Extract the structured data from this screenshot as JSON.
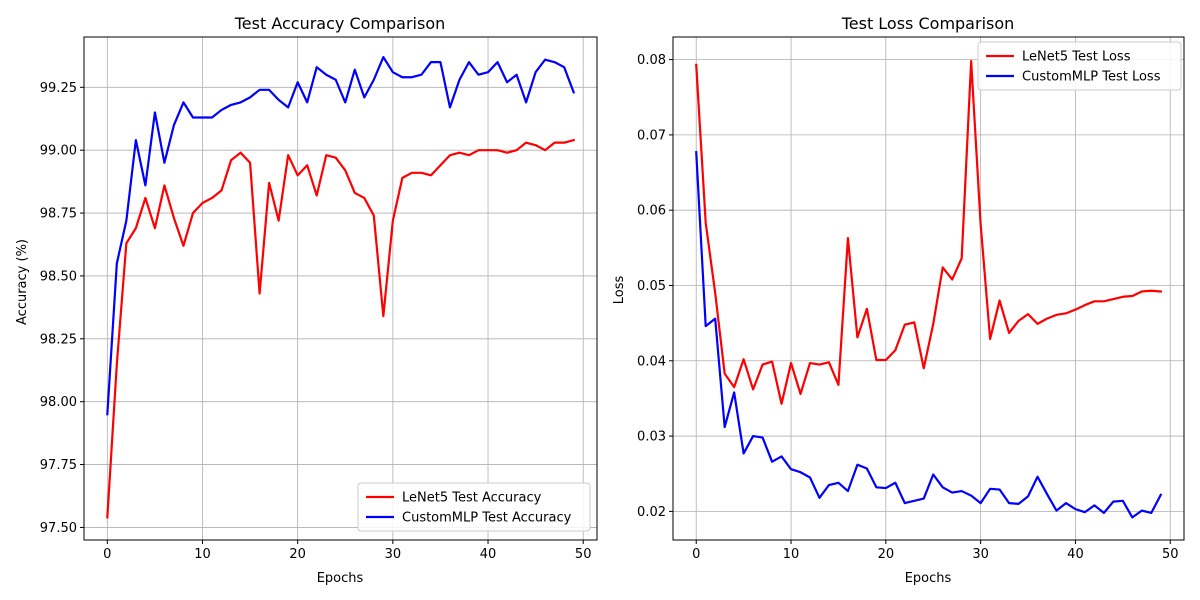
{
  "chart_data": [
    {
      "type": "line",
      "title": "Test Accuracy Comparison",
      "xlabel": "Epochs",
      "ylabel": "Accuracy (%)",
      "xlim": [
        -2.45,
        51.45
      ],
      "ylim": [
        97.45,
        99.45
      ],
      "xticks": [
        0,
        10,
        20,
        30,
        40,
        50
      ],
      "yticks": [
        97.5,
        97.75,
        98.0,
        98.25,
        98.5,
        98.75,
        99.0,
        99.25
      ],
      "ytick_labels": [
        "97.50",
        "97.75",
        "98.00",
        "98.25",
        "98.50",
        "98.75",
        "99.00",
        "99.25"
      ],
      "grid": true,
      "legend_position": "lower-right",
      "series": [
        {
          "name": "LeNet5 Test Accuracy",
          "color": "#ff0000",
          "values": [
            97.54,
            98.15,
            98.63,
            98.69,
            98.81,
            98.69,
            98.86,
            98.73,
            98.62,
            98.75,
            98.79,
            98.81,
            98.84,
            98.96,
            98.99,
            98.95,
            98.43,
            98.87,
            98.72,
            98.98,
            98.9,
            98.94,
            98.82,
            98.98,
            98.97,
            98.92,
            98.83,
            98.81,
            98.74,
            98.34,
            98.72,
            98.89,
            98.91,
            98.91,
            98.9,
            98.94,
            98.98,
            98.99,
            98.98,
            99.0,
            99.0,
            99.0,
            98.99,
            99.0,
            99.03,
            99.02,
            99.0,
            99.03,
            99.03,
            99.04
          ]
        },
        {
          "name": "CustomMLP Test Accuracy",
          "color": "#0000ff",
          "values": [
            97.95,
            98.55,
            98.72,
            99.04,
            98.86,
            99.15,
            98.95,
            99.1,
            99.19,
            99.13,
            99.13,
            99.13,
            99.16,
            99.18,
            99.19,
            99.21,
            99.24,
            99.24,
            99.2,
            99.17,
            99.27,
            99.19,
            99.33,
            99.3,
            99.28,
            99.19,
            99.32,
            99.21,
            99.28,
            99.37,
            99.31,
            99.29,
            99.29,
            99.3,
            99.35,
            99.35,
            99.17,
            99.28,
            99.35,
            99.3,
            99.31,
            99.35,
            99.27,
            99.3,
            99.19,
            99.31,
            99.36,
            99.35,
            99.33,
            99.23
          ]
        }
      ]
    },
    {
      "type": "line",
      "title": "Test Loss Comparison",
      "xlabel": "Epochs",
      "ylabel": "Loss",
      "xlim": [
        -2.45,
        51.45
      ],
      "ylim": [
        0.0162,
        0.083
      ],
      "xticks": [
        0,
        10,
        20,
        30,
        40,
        50
      ],
      "yticks": [
        0.02,
        0.03,
        0.04,
        0.05,
        0.06,
        0.07,
        0.08
      ],
      "ytick_labels": [
        "0.02",
        "0.03",
        "0.04",
        "0.05",
        "0.06",
        "0.07",
        "0.08"
      ],
      "grid": true,
      "legend_position": "upper-right",
      "series": [
        {
          "name": "LeNet5 Test Loss",
          "color": "#ff0000",
          "values": [
            0.0793,
            0.0583,
            0.049,
            0.0383,
            0.0365,
            0.0402,
            0.0362,
            0.0395,
            0.0399,
            0.0343,
            0.0397,
            0.0356,
            0.0397,
            0.0395,
            0.0398,
            0.0368,
            0.0563,
            0.0431,
            0.0469,
            0.0401,
            0.0401,
            0.0414,
            0.0448,
            0.0451,
            0.039,
            0.0449,
            0.0524,
            0.0508,
            0.0536,
            0.0798,
            0.0581,
            0.0429,
            0.048,
            0.0437,
            0.0453,
            0.0462,
            0.0449,
            0.0456,
            0.0461,
            0.0463,
            0.0468,
            0.0474,
            0.0479,
            0.0479,
            0.0482,
            0.0485,
            0.0486,
            0.0492,
            0.0493,
            0.0492
          ]
        },
        {
          "name": "CustomMLP Test Loss",
          "color": "#0000ff",
          "values": [
            0.0677,
            0.0446,
            0.0456,
            0.0312,
            0.0358,
            0.0277,
            0.03,
            0.0298,
            0.0266,
            0.0273,
            0.0256,
            0.0252,
            0.0245,
            0.0218,
            0.0235,
            0.0238,
            0.0227,
            0.0262,
            0.0257,
            0.0232,
            0.0231,
            0.0238,
            0.0211,
            0.0214,
            0.0217,
            0.0249,
            0.0232,
            0.0225,
            0.0227,
            0.0221,
            0.0211,
            0.023,
            0.0229,
            0.0211,
            0.021,
            0.022,
            0.0246,
            0.0223,
            0.0201,
            0.0211,
            0.0203,
            0.0199,
            0.0208,
            0.0198,
            0.0213,
            0.0214,
            0.0192,
            0.0201,
            0.0198,
            0.0222
          ]
        }
      ]
    }
  ]
}
